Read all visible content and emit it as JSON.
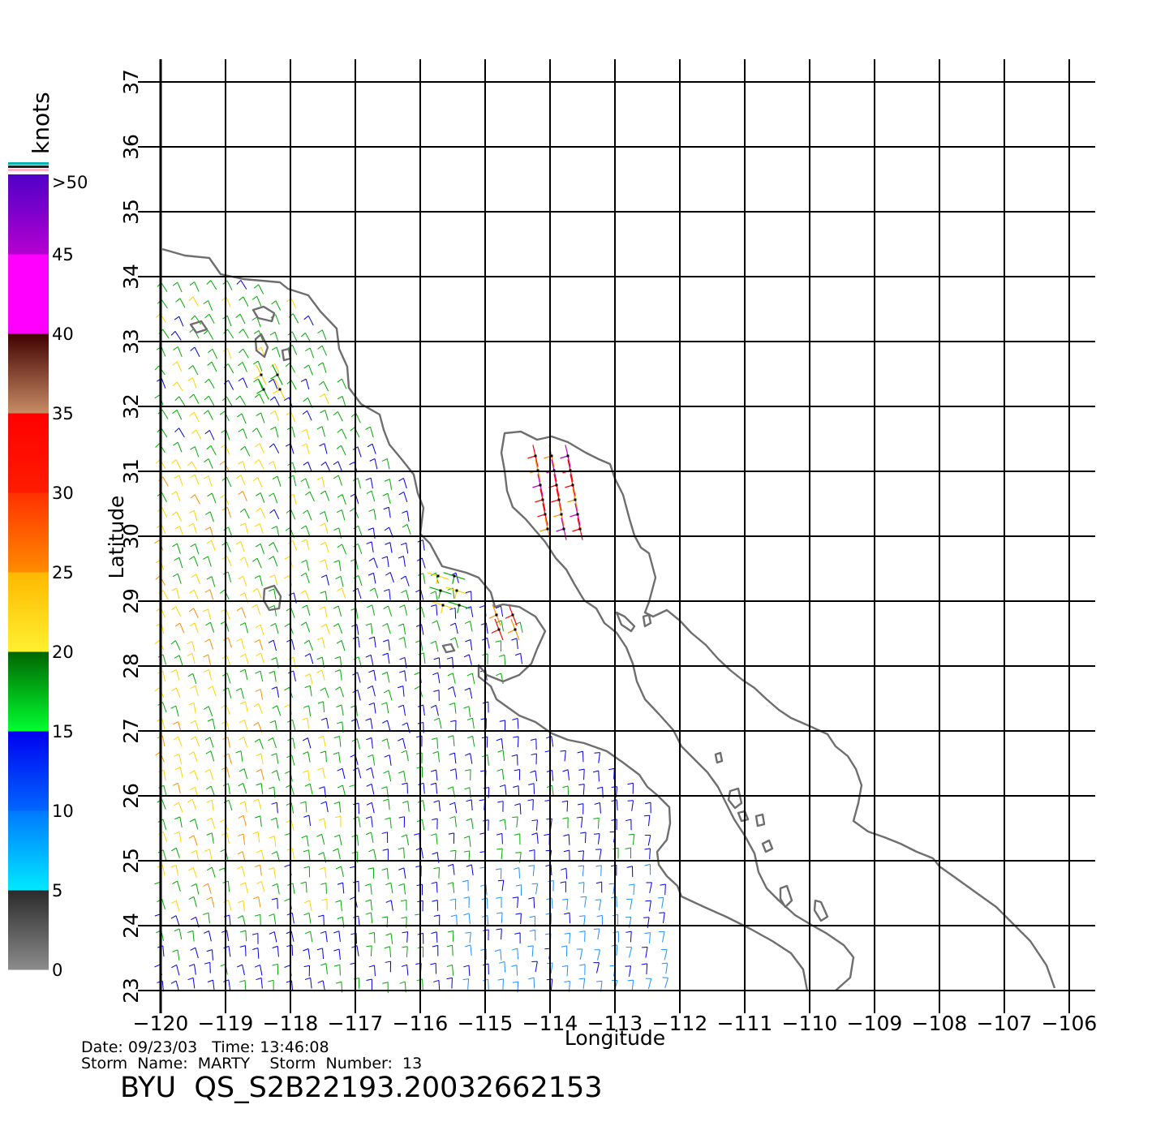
{
  "map": {
    "lon_range": [
      -120,
      -106
    ],
    "lat_range": [
      23,
      37
    ],
    "xlabel": "Longitude",
    "ylabel": "Latitude",
    "lon_ticks": [
      "−120",
      "−119",
      "−118",
      "−117",
      "−116",
      "−115",
      "−114",
      "−113",
      "−112",
      "−111",
      "−110",
      "−109",
      "−108",
      "−107",
      "−106"
    ],
    "lat_ticks": [
      "23",
      "24",
      "25",
      "26",
      "27",
      "28",
      "29",
      "30",
      "31",
      "32",
      "33",
      "34",
      "35",
      "36",
      "37"
    ],
    "grid": true,
    "coastline_color": "#6e6e6e"
  },
  "colorbar": {
    "units": "knots",
    "over_label": ">50",
    "labels": [
      "0",
      "5",
      "10",
      "15",
      "20",
      "25",
      "30",
      "35",
      "40",
      "45"
    ],
    "segments": [
      {
        "from": "#8c8c8c",
        "to": "#2a2a2a"
      },
      {
        "from": "#00e8ff",
        "to": "#0078ff"
      },
      {
        "from": "#0066ff",
        "to": "#0000f0"
      },
      {
        "from": "#00ff30",
        "to": "#006400"
      },
      {
        "from": "#fff030",
        "to": "#ffb800"
      },
      {
        "from": "#ff8c00",
        "to": "#ff3000"
      },
      {
        "from": "#ff1c00",
        "to": "#ff0000"
      },
      {
        "from": "#c88c64",
        "to": "#400000"
      },
      {
        "from": "#ff00ff",
        "to": "#ff00ff"
      },
      {
        "from": "#b400d0",
        "to": "#5000c8"
      }
    ],
    "top_stripes": [
      "#00b4b4",
      "#202020",
      "#ffb4c8"
    ]
  },
  "wind_field": {
    "region_desc": "ocean swath west of Baja California",
    "speed_colors": {
      "light_blue": "#1e90ff",
      "blue": "#0000e0",
      "green": "#00aa00",
      "yellow": "#ffd200",
      "orange": "#ff8c00",
      "red": "#ff0000",
      "magenta": "#c000c0"
    }
  },
  "info": {
    "date_line": "Date: 09/23/03   Time: 13:46:08",
    "storm_line": "Storm  Name:  MARTY    Storm  Number:  13",
    "product": "BYU  QS_S2B22193.20032662153"
  }
}
